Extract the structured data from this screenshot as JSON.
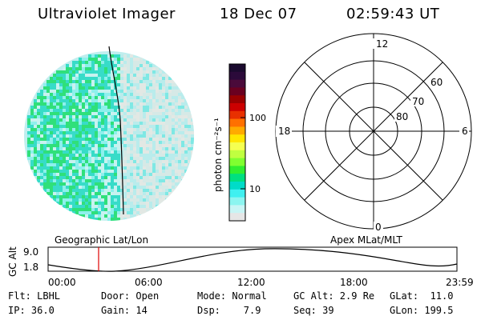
{
  "header": {
    "instrument": "Ultraviolet Imager",
    "date": "18 Dec 07",
    "time": "02:59:43 UT"
  },
  "colorbar": {
    "unit_label": "photon cm⁻²s⁻¹",
    "ticks": [
      "100",
      "10"
    ],
    "colors": [
      "#1a0a2e",
      "#2b0a3a",
      "#4a0a3a",
      "#6a0020",
      "#9a0000",
      "#cc0000",
      "#e83000",
      "#ff7000",
      "#ffaa00",
      "#ffe600",
      "#f5ff50",
      "#c0ff40",
      "#80ff30",
      "#30ee30",
      "#00e080",
      "#00dcc8",
      "#40f0f0",
      "#8cf5f0",
      "#c8f5f5",
      "#e6e6e6"
    ]
  },
  "polar": {
    "clock_labels": {
      "top": "12",
      "left": "18",
      "right": "6",
      "bottom": "0"
    },
    "lat_labels": [
      "60",
      "70",
      "80"
    ]
  },
  "orbit": {
    "geo_label": "Geographic Lat/Lon",
    "apex_label": "Apex MLat/MLT",
    "y_axis_label": "GC Alt",
    "y_ticks": [
      "9.0",
      "1.8"
    ],
    "x_ticks": [
      "00:00",
      "06:00",
      "12:00",
      "18:00",
      "23:59"
    ]
  },
  "status": {
    "row1": {
      "flt": "Flt: LBHL",
      "door": "Door: Open",
      "mode": "Mode: Normal",
      "gcalt": "GC Alt: 2.9 Re",
      "glat": "GLat:  11.0"
    },
    "row2": {
      "ip": "IP: 36.0",
      "gain": "Gain: 14",
      "dsp": "Dsp:    7.9",
      "seq": "Seq: 39",
      "glon": "GLon: 199.5"
    }
  }
}
